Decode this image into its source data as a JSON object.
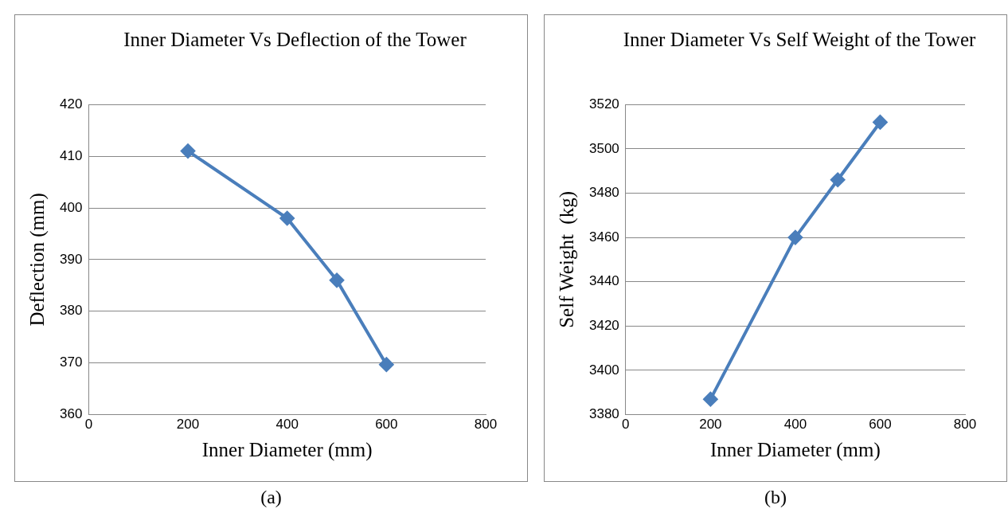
{
  "chart_data": [
    {
      "type": "line",
      "title": "Inner Diameter Vs Deflection of the Tower",
      "xlabel": "Inner Diameter (mm)",
      "ylabel": "Deflection (mm)",
      "x": [
        200,
        400,
        500,
        600
      ],
      "series": [
        {
          "color": "#4a7ebb",
          "values": [
            411,
            398,
            386,
            369.7
          ]
        }
      ],
      "xlim": [
        0,
        800
      ],
      "xticks": [
        0,
        200,
        400,
        600,
        800
      ],
      "ylim": [
        360,
        420
      ],
      "yticks": [
        360,
        370,
        380,
        390,
        400,
        410,
        420
      ],
      "grid": "y",
      "marker": "diamond",
      "annotations": [
        "(a)"
      ]
    },
    {
      "type": "line",
      "title": "Inner Diameter Vs Self Weight of the Tower",
      "xlabel": "Inner Diameter (mm)",
      "ylabel": "Self Weight  (kg)",
      "x": [
        200,
        400,
        500,
        600
      ],
      "series": [
        {
          "color": "#4a7ebb",
          "values": [
            3387,
            3460,
            3486,
            3512
          ]
        }
      ],
      "xlim": [
        0,
        800
      ],
      "xticks": [
        0,
        200,
        400,
        600,
        800
      ],
      "ylim": [
        3380,
        3520
      ],
      "yticks": [
        3380,
        3400,
        3420,
        3440,
        3460,
        3480,
        3500,
        3520
      ],
      "grid": "y",
      "marker": "diamond",
      "annotations": [
        "(b)"
      ]
    }
  ]
}
